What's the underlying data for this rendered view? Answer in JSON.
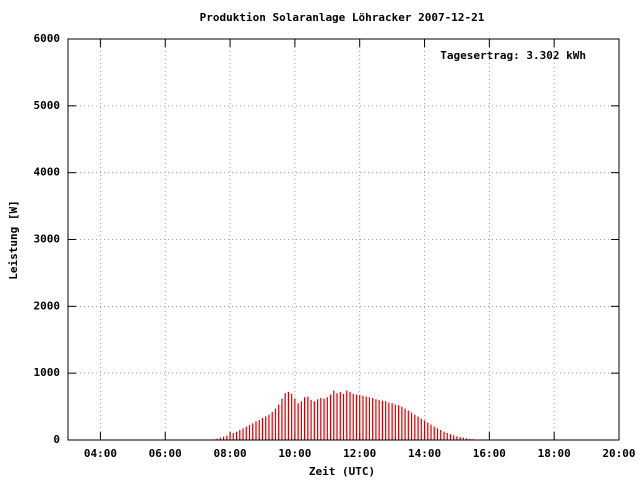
{
  "chart_data": {
    "type": "impulse",
    "title": "Produktion Solaranlage Löhracker 2007-12-21",
    "x_label": "Zeit (UTC)",
    "y_label": "Leistung [W]",
    "annotation": "Tagesertrag: 3.302 kWh",
    "color": "#d00000",
    "grid": true,
    "xlim": [
      3,
      20
    ],
    "xticks": [
      {
        "value": 4,
        "label": "04:00"
      },
      {
        "value": 6,
        "label": "06:00"
      },
      {
        "value": 8,
        "label": "08:00"
      },
      {
        "value": 10,
        "label": "10:00"
      },
      {
        "value": 12,
        "label": "12:00"
      },
      {
        "value": 14,
        "label": "14:00"
      },
      {
        "value": 16,
        "label": "16:00"
      },
      {
        "value": 18,
        "label": "18:00"
      },
      {
        "value": 20,
        "label": "20:00"
      }
    ],
    "ylim": [
      0,
      6000
    ],
    "yticks": [
      0,
      1000,
      2000,
      3000,
      4000,
      5000,
      6000
    ],
    "x": [
      7.4,
      7.5,
      7.6,
      7.7,
      7.8,
      7.9,
      8.0,
      8.1,
      8.2,
      8.3,
      8.4,
      8.5,
      8.6,
      8.7,
      8.8,
      8.9,
      9.0,
      9.1,
      9.2,
      9.3,
      9.4,
      9.5,
      9.6,
      9.7,
      9.8,
      9.9,
      10.0,
      10.1,
      10.2,
      10.3,
      10.4,
      10.5,
      10.6,
      10.7,
      10.8,
      10.9,
      11.0,
      11.1,
      11.2,
      11.3,
      11.4,
      11.5,
      11.6,
      11.7,
      11.8,
      11.9,
      12.0,
      12.1,
      12.2,
      12.3,
      12.4,
      12.5,
      12.6,
      12.7,
      12.8,
      12.9,
      13.0,
      13.1,
      13.2,
      13.3,
      13.4,
      13.5,
      13.6,
      13.7,
      13.8,
      13.9,
      14.0,
      14.1,
      14.2,
      14.3,
      14.4,
      14.5,
      14.6,
      14.7,
      14.8,
      14.9,
      15.0,
      15.1,
      15.2,
      15.3,
      15.4,
      15.5,
      15.6,
      15.7,
      15.8
    ],
    "values": [
      5,
      10,
      20,
      35,
      50,
      65,
      85,
      105,
      125,
      150,
      175,
      200,
      225,
      250,
      280,
      300,
      330,
      355,
      380,
      420,
      470,
      530,
      620,
      700,
      720,
      690,
      620,
      550,
      580,
      640,
      650,
      600,
      580,
      610,
      630,
      620,
      640,
      680,
      740,
      700,
      720,
      690,
      740,
      720,
      690,
      680,
      670,
      660,
      650,
      640,
      630,
      610,
      600,
      590,
      580,
      560,
      550,
      530,
      520,
      500,
      470,
      440,
      410,
      380,
      350,
      320,
      290,
      260,
      230,
      200,
      175,
      150,
      125,
      105,
      85,
      70,
      55,
      45,
      35,
      25,
      18,
      12,
      8,
      5,
      3
    ]
  }
}
